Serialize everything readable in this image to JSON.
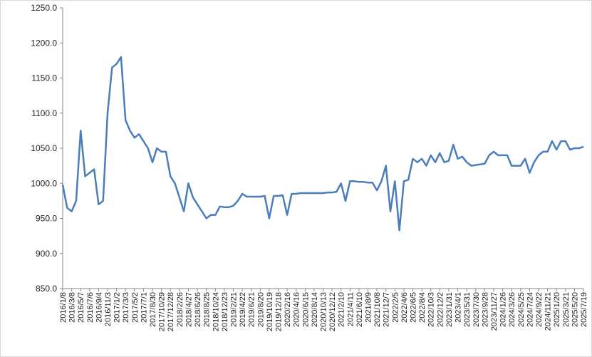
{
  "chart_data": {
    "type": "line",
    "categories": [
      "2016/1/8",
      null,
      "2016/3/8",
      null,
      "2016/5/7",
      null,
      "2016/7/6",
      null,
      "2016/9/4",
      null,
      "2016/11/3",
      null,
      "2017/1/2",
      null,
      "2017/3/3",
      null,
      "2017/5/2",
      null,
      "2017/7/1",
      null,
      "2017/8/30",
      null,
      "2017/10/29",
      null,
      "2017/12/28",
      null,
      "2018/2/26",
      null,
      "2018/4/27",
      null,
      "2018/6/26",
      null,
      "2018/8/25",
      null,
      "2018/10/24",
      null,
      "2018/12/23",
      null,
      "2019/2/21",
      null,
      "2019/4/22",
      null,
      "2019/6/21",
      null,
      "2019/8/20",
      null,
      "2019/10/19",
      null,
      "2019/12/18",
      null,
      "2020/2/16",
      null,
      "2020/4/16",
      null,
      "2020/6/15",
      null,
      "2020/8/14",
      null,
      "2020/10/13",
      null,
      "2020/12/12",
      null,
      "2021/2/10",
      null,
      "2021/4/11",
      null,
      "2021/6/10",
      null,
      "2021/8/9",
      null,
      "2021/10/8",
      null,
      "2021/12/7",
      null,
      "2022/2/5",
      null,
      "2022/4/6",
      null,
      "2022/6/5",
      null,
      "2022/8/4",
      null,
      "2022/10/3",
      null,
      "2022/12/2",
      null,
      "2023/1/31",
      null,
      "2023/4/1",
      null,
      "2023/5/31",
      null,
      "2023/7/30",
      null,
      "2023/9/28",
      null,
      "2023/11/27",
      null,
      "2024/1/26",
      null,
      "2024/3/26",
      null,
      "2024/5/25",
      null,
      "2024/7/24",
      null,
      "2024/9/22",
      null,
      "2024/11/21",
      null,
      "2025/1/20",
      null,
      "2025/3/21",
      null,
      "2025/5/20",
      null,
      "2025/7/19"
    ],
    "series": [
      {
        "color": "#4a7ebb",
        "values": [
          998,
          965,
          960,
          975,
          1075,
          1010,
          1015,
          1020,
          970,
          975,
          1100,
          1165,
          1170,
          1180,
          1090,
          1075,
          1065,
          1070,
          1060,
          1050,
          1030,
          1050,
          1045,
          1045,
          1010,
          1000,
          980,
          960,
          1000,
          980,
          970,
          960,
          950,
          955,
          955,
          967,
          966,
          966,
          968,
          975,
          985,
          981,
          981,
          981,
          981,
          982,
          950,
          982,
          982,
          983,
          955,
          985,
          985,
          986,
          986,
          986,
          986,
          986,
          986,
          987,
          987,
          988,
          1000,
          975,
          1003,
          1003,
          1002,
          1002,
          1001,
          1001,
          990,
          1003,
          1025,
          960,
          1003,
          933,
          1003,
          1005,
          1035,
          1030,
          1035,
          1025,
          1040,
          1030,
          1043,
          1030,
          1032,
          1055,
          1035,
          1038,
          1030,
          1025,
          1026,
          1027,
          1028,
          1040,
          1045,
          1040,
          1040,
          1040,
          1025,
          1025,
          1025,
          1035,
          1015,
          1030,
          1040,
          1045,
          1045,
          1060,
          1048,
          1060,
          1060,
          1048,
          1050,
          1050,
          1052
        ]
      }
    ],
    "ylim": [
      850,
      1250
    ],
    "yticks": [
      {
        "value": 850,
        "label": "850.0"
      },
      {
        "value": 900,
        "label": "900.0"
      },
      {
        "value": 950,
        "label": "950.0"
      },
      {
        "value": 1000,
        "label": "1000.0"
      },
      {
        "value": 1050,
        "label": "1050.0"
      },
      {
        "value": 1100,
        "label": "1100.0"
      },
      {
        "value": 1150,
        "label": "1150.0"
      },
      {
        "value": 1200,
        "label": "1200.0"
      },
      {
        "value": 1250,
        "label": "1250.0"
      }
    ],
    "grid": false
  }
}
